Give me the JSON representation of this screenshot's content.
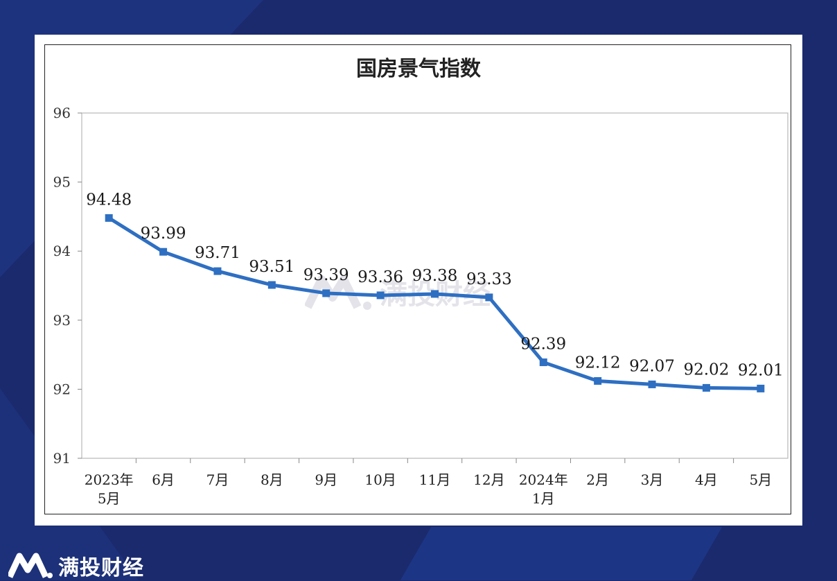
{
  "brand": {
    "name": "满投财经",
    "logo_icon": "mt-logo-icon"
  },
  "chart_data": {
    "type": "line",
    "title": "国房景气指数",
    "xlabel": "",
    "ylabel": "",
    "ylim": [
      91,
      96
    ],
    "yticks": [
      91,
      92,
      93,
      94,
      95,
      96
    ],
    "categories": [
      [
        "2023年",
        "5月"
      ],
      [
        "6月"
      ],
      [
        "7月"
      ],
      [
        "8月"
      ],
      [
        "9月"
      ],
      [
        "10月"
      ],
      [
        "11月"
      ],
      [
        "12月"
      ],
      [
        "2024年",
        "1月"
      ],
      [
        "2月"
      ],
      [
        "3月"
      ],
      [
        "4月"
      ],
      [
        "5月"
      ]
    ],
    "series": [
      {
        "values": [
          94.48,
          93.99,
          93.71,
          93.51,
          93.39,
          93.36,
          93.38,
          93.33,
          92.39,
          92.12,
          92.07,
          92.02,
          92.01
        ],
        "labels": [
          "94.48",
          "93.99",
          "93.71",
          "93.51",
          "93.39",
          "93.36",
          "93.38",
          "93.33",
          "92.39",
          "92.12",
          "92.07",
          "92.02",
          "92.01"
        ],
        "color": "#2e6fc2"
      }
    ],
    "grid": false,
    "legend": "none"
  }
}
